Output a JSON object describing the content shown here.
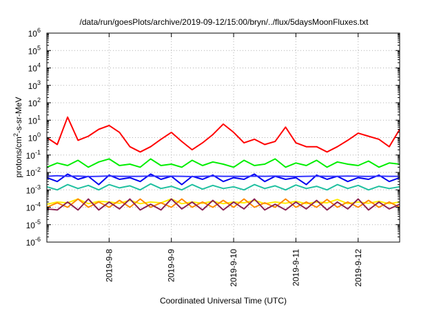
{
  "chart_data": {
    "type": "line",
    "title": "/data/run/goesPlots/archive/2019-09-12/15:00/bryn/../flux/5daysMoonFluxes.txt",
    "xlabel": "Coordinated Universal Time (UTC)",
    "ylabel": "protons/cm²-s-sr-MeV",
    "ylabel_parts": {
      "pre": "protons/cm",
      "sup": "2",
      "post": "-s-sr-MeV"
    },
    "y_scale": "log",
    "ylim": [
      1e-06,
      1000000.0
    ],
    "y_ticks": [
      {
        "base": "10",
        "exp": "-6",
        "value": 1e-06
      },
      {
        "base": "10",
        "exp": "-5",
        "value": 1e-05
      },
      {
        "base": "10",
        "exp": "-4",
        "value": 0.0001
      },
      {
        "base": "10",
        "exp": "-3",
        "value": 0.001
      },
      {
        "base": "10",
        "exp": "-2",
        "value": 0.01
      },
      {
        "base": "10",
        "exp": "-1",
        "value": 0.1
      },
      {
        "base": "10",
        "exp": "0",
        "value": 1
      },
      {
        "base": "10",
        "exp": "1",
        "value": 10
      },
      {
        "base": "10",
        "exp": "2",
        "value": 100
      },
      {
        "base": "10",
        "exp": "3",
        "value": 1000
      },
      {
        "base": "10",
        "exp": "4",
        "value": 10000
      },
      {
        "base": "10",
        "exp": "5",
        "value": 100000
      },
      {
        "base": "10",
        "exp": "6",
        "value": 1000000
      }
    ],
    "xlim": [
      "2019-09-07 00:00",
      "2019-09-12 16:00"
    ],
    "x_ticks": [
      {
        "label": "2019-9-8",
        "value": "2019-09-08 00:00"
      },
      {
        "label": "2019-9-9",
        "value": "2019-09-09 00:00"
      },
      {
        "label": "2019-9-10",
        "value": "2019-09-10 00:00"
      },
      {
        "label": "2019-9-11",
        "value": "2019-09-11 00:00"
      },
      {
        "label": "2019-9-12",
        "value": "2019-09-12 00:00"
      }
    ],
    "grid": true,
    "x": [
      "2019-09-07 00:00",
      "2019-09-07 04:00",
      "2019-09-07 08:00",
      "2019-09-07 12:00",
      "2019-09-07 16:00",
      "2019-09-07 20:00",
      "2019-09-08 00:00",
      "2019-09-08 04:00",
      "2019-09-08 08:00",
      "2019-09-08 12:00",
      "2019-09-08 16:00",
      "2019-09-08 20:00",
      "2019-09-09 00:00",
      "2019-09-09 04:00",
      "2019-09-09 08:00",
      "2019-09-09 12:00",
      "2019-09-09 16:00",
      "2019-09-09 20:00",
      "2019-09-10 00:00",
      "2019-09-10 04:00",
      "2019-09-10 08:00",
      "2019-09-10 12:00",
      "2019-09-10 16:00",
      "2019-09-10 20:00",
      "2019-09-11 00:00",
      "2019-09-11 04:00",
      "2019-09-11 08:00",
      "2019-09-11 12:00",
      "2019-09-11 16:00",
      "2019-09-11 20:00",
      "2019-09-12 00:00",
      "2019-09-12 04:00",
      "2019-09-12 08:00",
      "2019-09-12 12:00",
      "2019-09-12 16:00"
    ],
    "series": [
      {
        "color": "#ff0000",
        "values": [
          1.0,
          0.4,
          15,
          0.7,
          1.2,
          3,
          5,
          2,
          0.3,
          0.15,
          0.3,
          0.8,
          2,
          0.6,
          0.2,
          0.5,
          1.5,
          6,
          2,
          0.5,
          0.8,
          0.4,
          0.6,
          4,
          0.5,
          0.3,
          0.3,
          0.15,
          0.3,
          0.7,
          1.8,
          1.2,
          0.8,
          0.3,
          3
        ]
      },
      {
        "color": "#00ee00",
        "values": [
          0.02,
          0.035,
          0.025,
          0.05,
          0.02,
          0.04,
          0.06,
          0.025,
          0.03,
          0.02,
          0.06,
          0.025,
          0.03,
          0.02,
          0.05,
          0.025,
          0.04,
          0.03,
          0.02,
          0.05,
          0.025,
          0.03,
          0.06,
          0.02,
          0.035,
          0.025,
          0.05,
          0.02,
          0.04,
          0.03,
          0.025,
          0.045,
          0.02,
          0.035,
          0.03
        ]
      },
      {
        "color": "#0000ee",
        "values": [
          0.005,
          0.003,
          0.008,
          0.004,
          0.006,
          0.002,
          0.007,
          0.004,
          0.005,
          0.003,
          0.008,
          0.004,
          0.006,
          0.002,
          0.006,
          0.004,
          0.007,
          0.003,
          0.005,
          0.004,
          0.008,
          0.003,
          0.006,
          0.004,
          0.005,
          0.002,
          0.007,
          0.004,
          0.006,
          0.003,
          0.005,
          0.004,
          0.007,
          0.003,
          0.005
        ]
      },
      {
        "color": "#3333ff",
        "values": [
          0.006,
          0.0065,
          0.006,
          0.0062,
          0.0058,
          0.006,
          0.0063,
          0.006,
          0.0059,
          0.006,
          0.0062,
          0.006,
          0.0061,
          0.006,
          0.0058,
          0.006,
          0.0062,
          0.006,
          0.006,
          0.0059,
          0.0061,
          0.006,
          0.0062,
          0.006,
          0.0058,
          0.006,
          0.0061,
          0.006,
          0.006,
          0.0062,
          0.006,
          0.0059,
          0.0061,
          0.006,
          0.006
        ]
      },
      {
        "color": "#20c0a0",
        "values": [
          0.0015,
          0.001,
          0.002,
          0.0012,
          0.0018,
          0.001,
          0.002,
          0.0013,
          0.0017,
          0.001,
          0.0022,
          0.0012,
          0.0016,
          0.001,
          0.002,
          0.0011,
          0.0018,
          0.0012,
          0.0015,
          0.001,
          0.002,
          0.0012,
          0.0017,
          0.001,
          0.0019,
          0.0012,
          0.0016,
          0.001,
          0.002,
          0.0012,
          0.0018,
          0.001,
          0.0016,
          0.0012,
          0.0015
        ]
      },
      {
        "color": "#ffee00",
        "values": [
          0.00015,
          0.0002,
          0.00018,
          0.0003,
          0.00016,
          0.00022,
          0.0002,
          0.00017,
          0.00025,
          0.00016,
          0.0002,
          0.00018,
          0.0003,
          0.00016,
          0.0002,
          0.00017,
          0.00022,
          0.00016,
          0.0002,
          0.00018,
          0.00025,
          0.00016,
          0.0002,
          0.00017,
          0.00022,
          0.00016,
          0.0002,
          0.00018,
          0.00028,
          0.00016,
          0.0002,
          0.00017,
          0.00022,
          0.00016,
          0.0002
        ]
      },
      {
        "color": "#ff8800",
        "values": [
          0.0001,
          0.00018,
          0.0001,
          0.0003,
          0.0001,
          0.0002,
          0.0001,
          0.00025,
          0.0001,
          0.0003,
          0.0001,
          0.00018,
          0.0001,
          0.0003,
          0.0001,
          0.0002,
          0.0001,
          0.00025,
          0.0001,
          0.0003,
          0.0001,
          0.00018,
          0.0001,
          0.0003,
          0.0001,
          0.0002,
          0.0001,
          0.00028,
          0.0001,
          0.0002,
          0.0001,
          0.00025,
          0.0001,
          0.0002,
          0.0001
        ]
      },
      {
        "color": "#8b2252",
        "values": [
          8e-05,
          7e-05,
          0.0002,
          7e-05,
          0.0003,
          7e-05,
          0.0002,
          8e-05,
          0.0003,
          7e-05,
          0.00015,
          7e-05,
          0.0003,
          8e-05,
          0.0002,
          7e-05,
          0.00025,
          7e-05,
          0.0002,
          8e-05,
          0.0003,
          7e-05,
          0.00015,
          7e-05,
          0.0002,
          8e-05,
          0.00025,
          7e-05,
          0.0002,
          8e-05,
          0.0003,
          7e-05,
          0.0002,
          8e-05,
          0.00015
        ]
      }
    ]
  }
}
